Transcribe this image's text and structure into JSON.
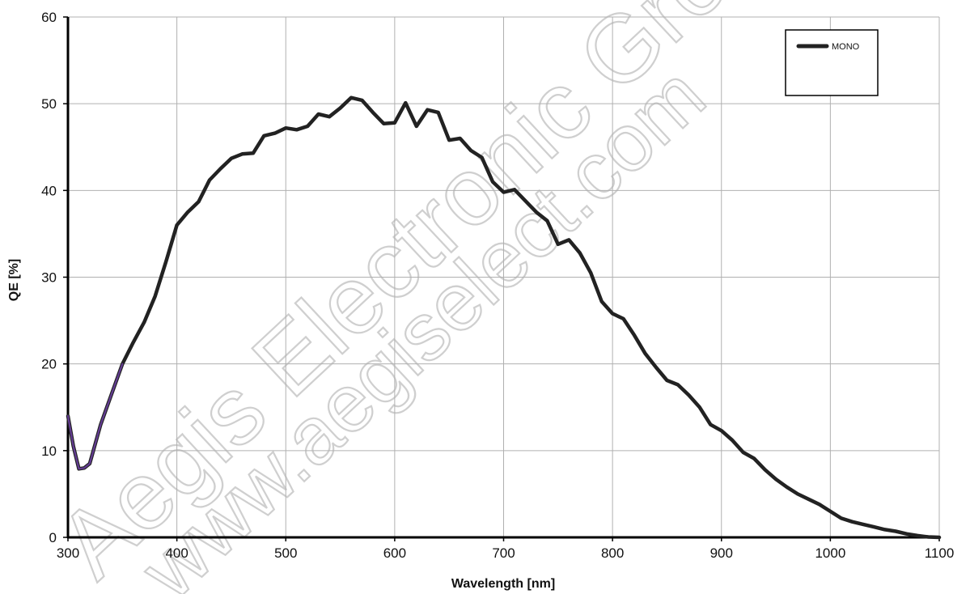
{
  "chart_data": {
    "type": "line",
    "title": "",
    "xlabel": "Wavelength [nm]",
    "ylabel": "QE [%]",
    "xlim": [
      300,
      1100
    ],
    "ylim": [
      0,
      60
    ],
    "xticks": [
      300,
      400,
      500,
      600,
      700,
      800,
      900,
      1000,
      1100
    ],
    "yticks": [
      0,
      10,
      20,
      30,
      40,
      50,
      60
    ],
    "grid": true,
    "legend_position": "top-right",
    "series": [
      {
        "name": "MONO",
        "color": "#222222",
        "x": [
          300,
          305,
          310,
          315,
          320,
          330,
          340,
          350,
          360,
          370,
          380,
          390,
          400,
          410,
          420,
          430,
          440,
          450,
          460,
          470,
          480,
          490,
          500,
          510,
          520,
          530,
          540,
          550,
          560,
          570,
          580,
          590,
          600,
          610,
          620,
          630,
          640,
          650,
          660,
          670,
          680,
          690,
          700,
          710,
          720,
          730,
          740,
          750,
          760,
          770,
          780,
          790,
          800,
          810,
          820,
          830,
          840,
          850,
          860,
          870,
          880,
          890,
          900,
          910,
          920,
          930,
          940,
          950,
          960,
          970,
          980,
          990,
          1000,
          1010,
          1020,
          1030,
          1040,
          1050,
          1060,
          1070,
          1080,
          1090,
          1100
        ],
        "y": [
          14.0,
          10.5,
          7.9,
          8.0,
          8.5,
          13.0,
          16.5,
          20.0,
          22.5,
          24.8,
          27.8,
          31.8,
          36.0,
          37.5,
          38.7,
          41.2,
          42.5,
          43.7,
          44.2,
          44.3,
          46.3,
          46.6,
          47.2,
          47.0,
          47.4,
          48.8,
          48.5,
          49.5,
          50.7,
          50.4,
          49.0,
          47.7,
          47.8,
          50.1,
          47.4,
          49.3,
          49.0,
          45.8,
          46.0,
          44.6,
          43.8,
          41.0,
          39.8,
          40.1,
          38.8,
          37.5,
          36.5,
          33.8,
          34.3,
          32.8,
          30.5,
          27.2,
          25.8,
          25.2,
          23.3,
          21.2,
          19.6,
          18.1,
          17.6,
          16.4,
          15.0,
          13.0,
          12.3,
          11.2,
          9.8,
          9.1,
          7.8,
          6.7,
          5.8,
          5.0,
          4.4,
          3.8,
          3.0,
          2.2,
          1.8,
          1.5,
          1.2,
          0.9,
          0.7,
          0.4,
          0.2,
          0.05,
          0.0
        ]
      }
    ]
  },
  "watermark": {
    "line1": "Aegis Electronic Group",
    "line2": "www.aegiselect.com"
  },
  "colors": {
    "grid": "#b0b0b0",
    "axis": "#000000",
    "short_wavelength_accent": "#6a3fa0"
  }
}
